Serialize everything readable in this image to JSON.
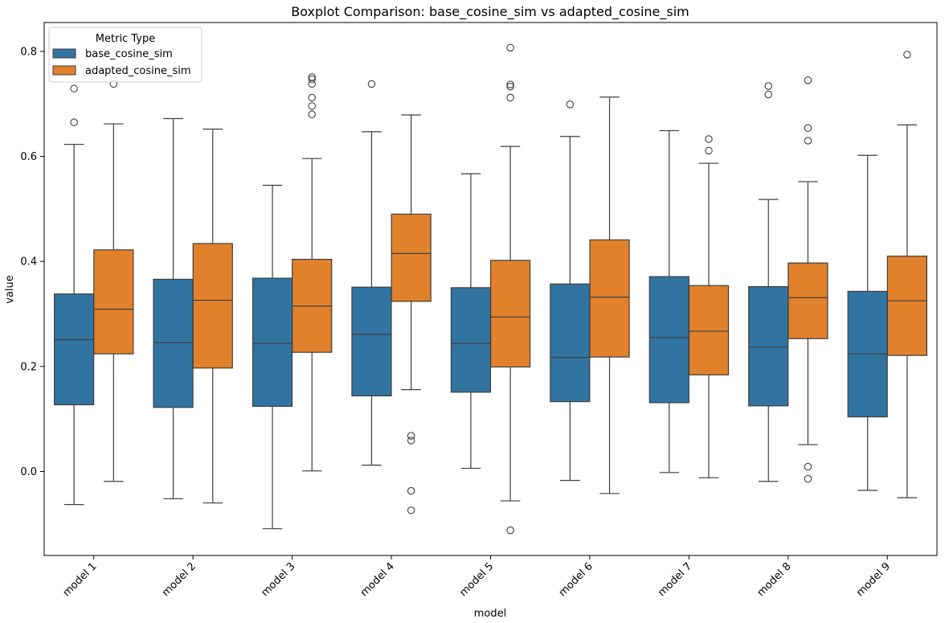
{
  "chart_data": {
    "type": "boxplot",
    "title": "Boxplot Comparison: base_cosine_sim vs adapted_cosine_sim",
    "xlabel": "model",
    "ylabel": "value",
    "ylim": [
      -0.16,
      0.855
    ],
    "yticks": [
      0.0,
      0.2,
      0.4,
      0.6,
      0.8
    ],
    "ytick_labels": [
      "0.0",
      "0.2",
      "0.4",
      "0.6",
      "0.8"
    ],
    "categories": [
      "model 1",
      "model 2",
      "model 3",
      "model 4",
      "model 5",
      "model 6",
      "model 7",
      "model 8",
      "model 9"
    ],
    "legend": {
      "title": "Metric Type",
      "placement": "top-left",
      "entries": [
        "base_cosine_sim",
        "adapted_cosine_sim"
      ]
    },
    "colors": {
      "base_cosine_sim": "#3274a1",
      "adapted_cosine_sim": "#e1812c",
      "edge": "#3d3d3d"
    },
    "series": [
      {
        "name": "base_cosine_sim",
        "boxes": [
          {
            "whislo": -0.063,
            "q1": 0.127,
            "med": 0.251,
            "q3": 0.338,
            "whishi": 0.623,
            "fliers": [
              0.665,
              0.729
            ]
          },
          {
            "whislo": -0.052,
            "q1": 0.122,
            "med": 0.245,
            "q3": 0.366,
            "whishi": 0.672,
            "fliers": []
          },
          {
            "whislo": -0.109,
            "q1": 0.124,
            "med": 0.244,
            "q3": 0.368,
            "whishi": 0.545,
            "fliers": []
          },
          {
            "whislo": 0.012,
            "q1": 0.144,
            "med": 0.261,
            "q3": 0.351,
            "whishi": 0.647,
            "fliers": [
              0.738
            ]
          },
          {
            "whislo": 0.006,
            "q1": 0.151,
            "med": 0.244,
            "q3": 0.35,
            "whishi": 0.567,
            "fliers": []
          },
          {
            "whislo": -0.017,
            "q1": 0.133,
            "med": 0.217,
            "q3": 0.357,
            "whishi": 0.638,
            "fliers": [
              0.699
            ]
          },
          {
            "whislo": -0.002,
            "q1": 0.131,
            "med": 0.255,
            "q3": 0.371,
            "whishi": 0.649,
            "fliers": []
          },
          {
            "whislo": -0.019,
            "q1": 0.125,
            "med": 0.237,
            "q3": 0.352,
            "whishi": 0.518,
            "fliers": [
              0.718,
              0.734
            ]
          },
          {
            "whislo": -0.036,
            "q1": 0.104,
            "med": 0.224,
            "q3": 0.343,
            "whishi": 0.602,
            "fliers": []
          }
        ]
      },
      {
        "name": "adapted_cosine_sim",
        "boxes": [
          {
            "whislo": -0.019,
            "q1": 0.224,
            "med": 0.309,
            "q3": 0.422,
            "whishi": 0.662,
            "fliers": [
              0.738
            ]
          },
          {
            "whislo": -0.06,
            "q1": 0.197,
            "med": 0.326,
            "q3": 0.434,
            "whishi": 0.652,
            "fliers": []
          },
          {
            "whislo": 0.001,
            "q1": 0.227,
            "med": 0.315,
            "q3": 0.404,
            "whishi": 0.596,
            "fliers": [
              0.68,
              0.696,
              0.712,
              0.738,
              0.747,
              0.751
            ]
          },
          {
            "whislo": 0.156,
            "q1": 0.324,
            "med": 0.415,
            "q3": 0.49,
            "whishi": 0.679,
            "fliers": [
              0.068,
              0.059,
              -0.037,
              -0.074
            ]
          },
          {
            "whislo": -0.056,
            "q1": 0.199,
            "med": 0.294,
            "q3": 0.402,
            "whishi": 0.619,
            "fliers": [
              0.712,
              0.733,
              0.737,
              0.807,
              -0.112
            ]
          },
          {
            "whislo": -0.042,
            "q1": 0.218,
            "med": 0.332,
            "q3": 0.441,
            "whishi": 0.713,
            "fliers": []
          },
          {
            "whislo": -0.012,
            "q1": 0.184,
            "med": 0.267,
            "q3": 0.354,
            "whishi": 0.587,
            "fliers": [
              0.611,
              0.633
            ]
          },
          {
            "whislo": 0.051,
            "q1": 0.253,
            "med": 0.331,
            "q3": 0.397,
            "whishi": 0.552,
            "fliers": [
              0.63,
              0.654,
              0.745,
              0.009,
              -0.014
            ]
          },
          {
            "whislo": -0.05,
            "q1": 0.221,
            "med": 0.325,
            "q3": 0.41,
            "whishi": 0.66,
            "fliers": [
              0.794
            ]
          }
        ]
      }
    ]
  }
}
